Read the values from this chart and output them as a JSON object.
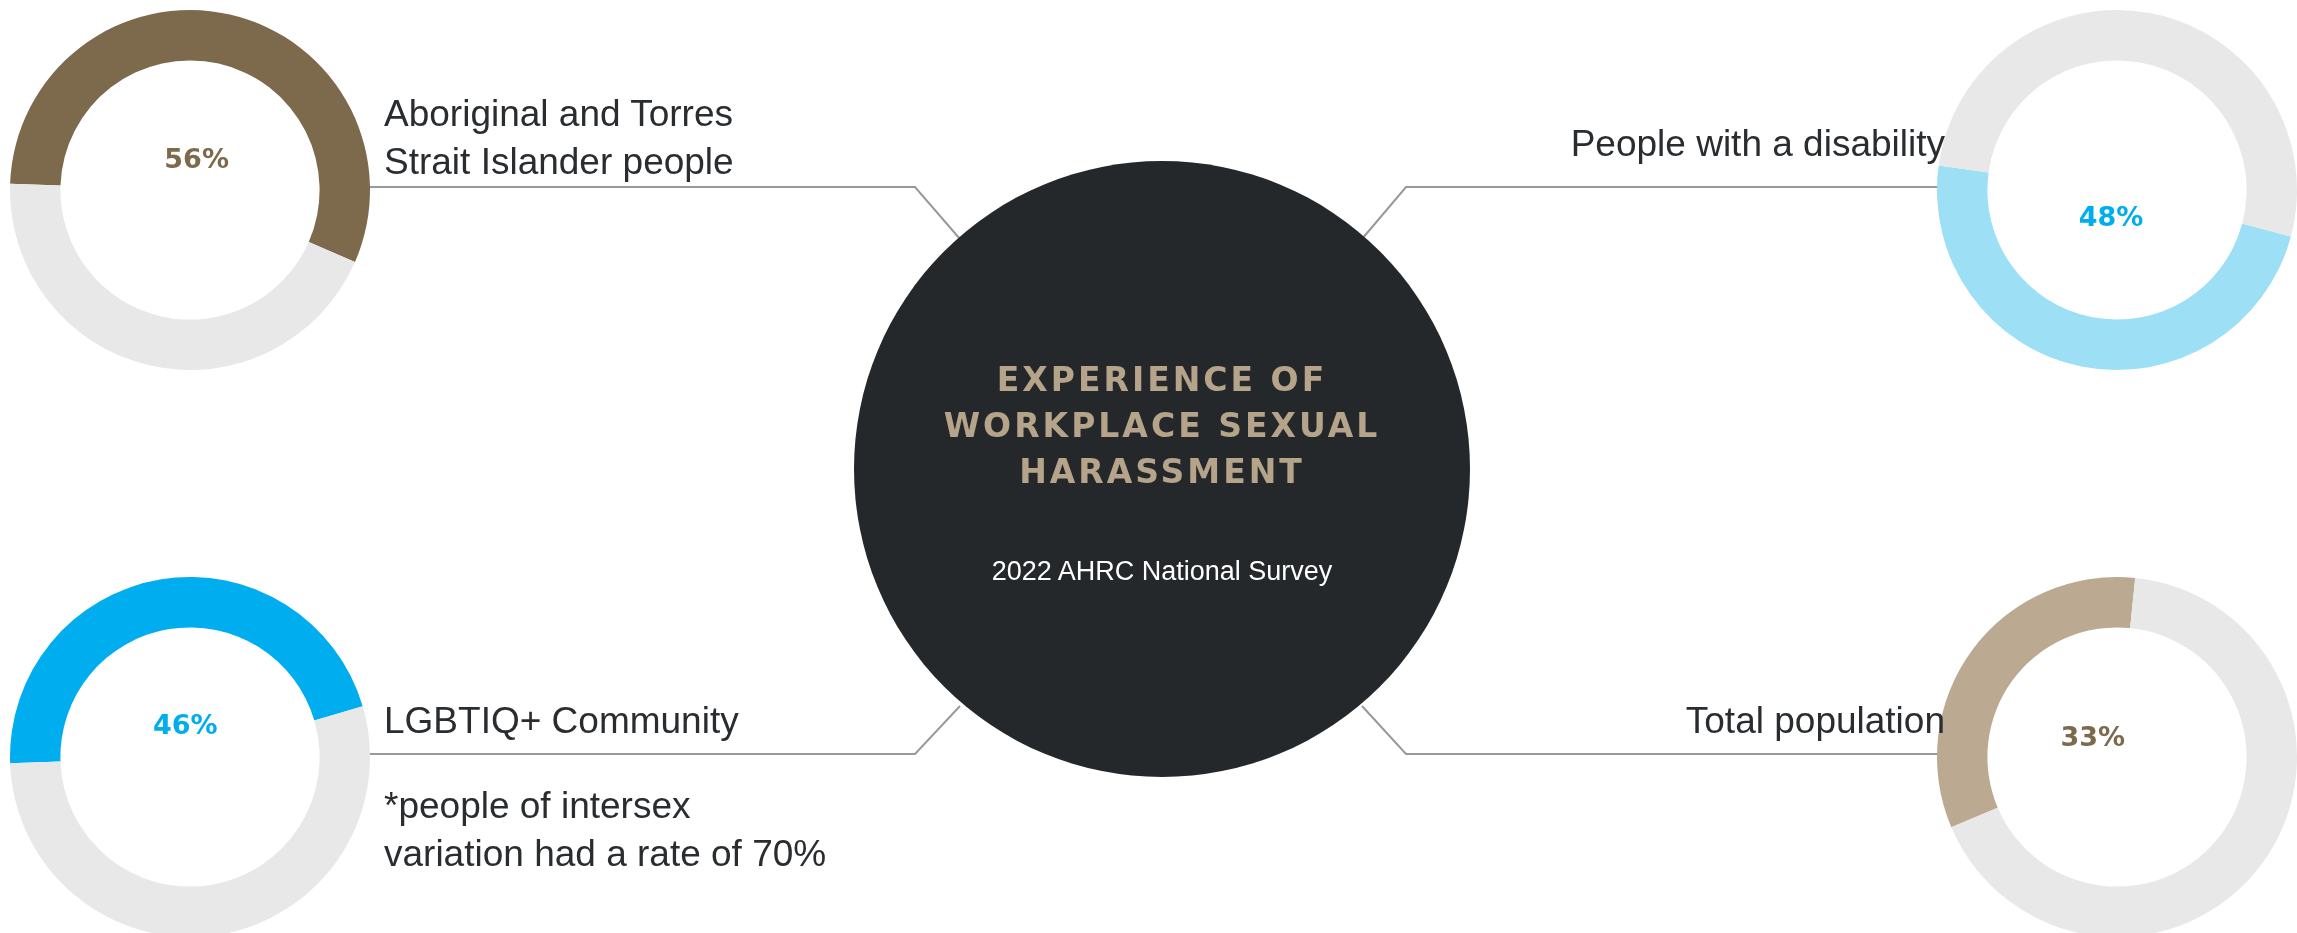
{
  "chart_data": [
    {
      "type": "donut",
      "title": "Aboriginal and Torres Strait Islander people",
      "categories": [
        null,
        null
      ],
      "values": [
        56,
        44
      ],
      "colors": [
        "#7d6a4d",
        "#e8e8e8"
      ],
      "value_labels": [
        "56%",
        null
      ],
      "legend": false
    },
    {
      "type": "donut",
      "title": "People with a disability",
      "categories": [
        null,
        null
      ],
      "values": [
        48,
        52
      ],
      "colors": [
        "#9ddff5",
        "#e8e8e8"
      ],
      "value_labels": [
        "48%",
        null
      ],
      "legend": false
    },
    {
      "type": "donut",
      "title": "LGBTIQ+ Community",
      "categories": [
        null,
        null
      ],
      "values": [
        46,
        54
      ],
      "colors": [
        "#00aeef",
        "#e8e8e8"
      ],
      "value_labels": [
        "46%",
        null
      ],
      "annotations": [
        "*people of intersex variation had a rate of 70%"
      ],
      "legend": false
    },
    {
      "type": "donut",
      "title": "Total population",
      "categories": [
        null,
        null
      ],
      "values": [
        33,
        67
      ],
      "colors": [
        "#bba992",
        "#e8e8e8"
      ],
      "value_labels": [
        "33%",
        null
      ],
      "legend": false
    },
    {
      "type": "other",
      "title": "EXPERIENCE OF WORKPLACE SEXUAL HARASSMENT",
      "subtitle": "2022 AHRC National Survey"
    }
  ]
}
